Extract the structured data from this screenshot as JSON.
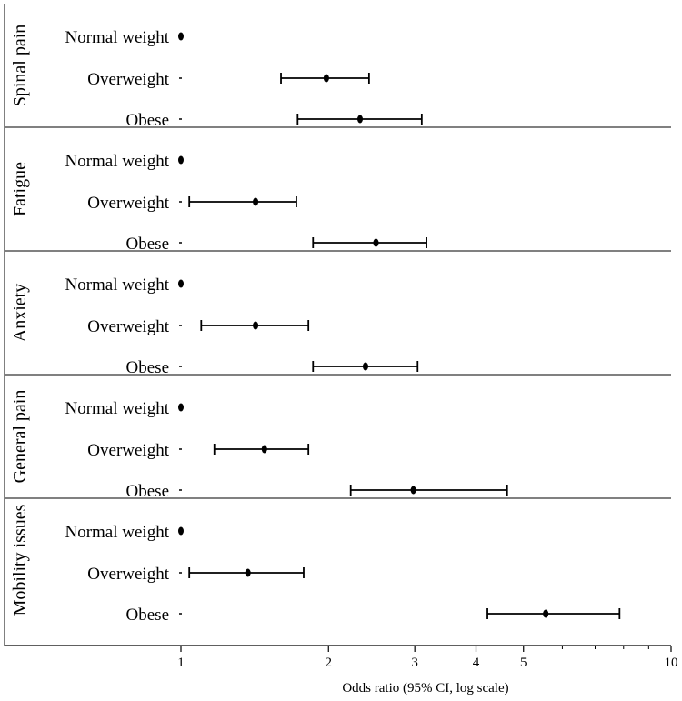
{
  "chart_data": {
    "type": "forest",
    "xlabel": "Odds ratio (95% CI, log scale)",
    "x_scale": "log",
    "xlim": [
      1,
      10
    ],
    "x_ticks": [
      1,
      2,
      3,
      4,
      5,
      10
    ],
    "groups": [
      {
        "name": "Spinal pain",
        "rows": [
          {
            "label": "Normal weight",
            "or": 1.0,
            "lo": 1.0,
            "hi": 1.0
          },
          {
            "label": "Overweight",
            "or": 1.98,
            "lo": 1.6,
            "hi": 2.42
          },
          {
            "label": "Obese",
            "or": 2.32,
            "lo": 1.73,
            "hi": 3.1
          }
        ]
      },
      {
        "name": "Fatigue",
        "rows": [
          {
            "label": "Normal weight",
            "or": 1.0,
            "lo": 1.0,
            "hi": 1.0
          },
          {
            "label": "Overweight",
            "or": 1.42,
            "lo": 1.04,
            "hi": 1.72
          }
        ]
      },
      {
        "name": "Fatigue",
        "rows": [
          {
            "label": "Obese",
            "or": 2.5,
            "lo": 1.86,
            "hi": 3.17
          }
        ]
      },
      {
        "name": "Anxiety",
        "rows": [
          {
            "label": "Normal weight",
            "or": 1.0,
            "lo": 1.0,
            "hi": 1.0
          },
          {
            "label": "Overweight",
            "or": 1.42,
            "lo": 1.1,
            "hi": 1.82
          },
          {
            "label": "Obese",
            "or": 2.38,
            "lo": 1.86,
            "hi": 3.04
          }
        ]
      },
      {
        "name": "General pain",
        "rows": [
          {
            "label": "Normal weight",
            "or": 1.0,
            "lo": 1.0,
            "hi": 1.0
          },
          {
            "label": "Overweight",
            "or": 1.48,
            "lo": 1.17,
            "hi": 1.82
          },
          {
            "label": "Obese",
            "or": 2.98,
            "lo": 2.22,
            "hi": 4.63
          }
        ]
      },
      {
        "name": "Mobility issues",
        "rows": [
          {
            "label": "Normal weight",
            "or": 1.0,
            "lo": 1.0,
            "hi": 1.0
          },
          {
            "label": "Overweight",
            "or": 1.37,
            "lo": 1.04,
            "hi": 1.78
          },
          {
            "label": "Obese",
            "or": 5.55,
            "lo": 4.22,
            "hi": 7.85
          }
        ]
      }
    ]
  }
}
